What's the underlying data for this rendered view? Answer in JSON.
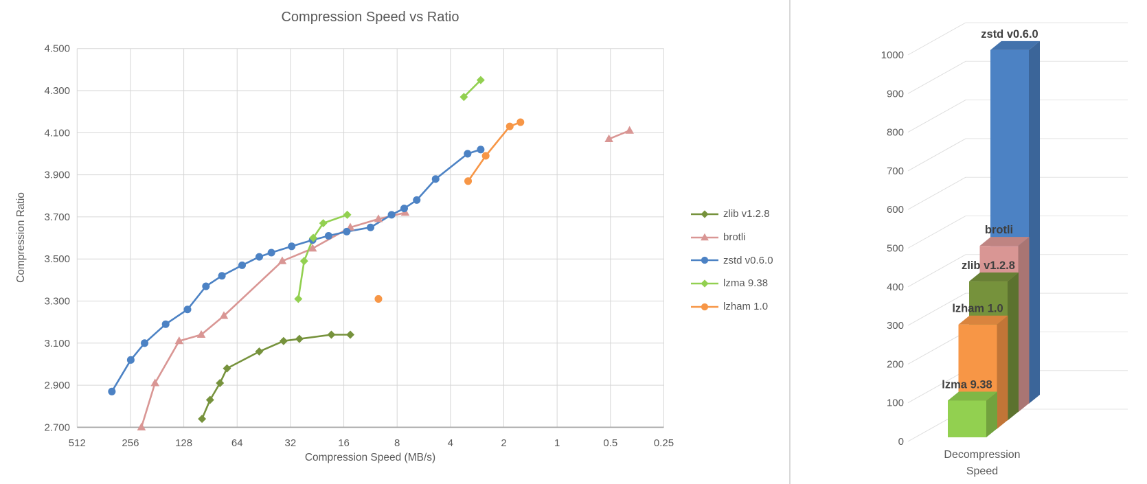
{
  "chart_data": [
    {
      "type": "scatter",
      "title": "Compression Speed vs Ratio",
      "xlabel": "Compression Speed (MB/s)",
      "ylabel": "Compression Ratio",
      "x_scale": "log2_descending",
      "x_ticks": [
        "512",
        "256",
        "128",
        "64",
        "32",
        "16",
        "8",
        "4",
        "2",
        "1",
        "0.5",
        "0.25"
      ],
      "y_ticks": [
        "4.500",
        "4.300",
        "4.100",
        "3.900",
        "3.700",
        "3.500",
        "3.300",
        "3.100",
        "2.900",
        "2.700"
      ],
      "xlim_descending": [
        512,
        0.25
      ],
      "ylim": [
        2.7,
        4.5
      ],
      "grid": true,
      "legend_position": "right",
      "series": [
        {
          "name": "zlib v1.2.8",
          "color": "#76923C",
          "marker": "diamond",
          "line_segments": [
            [
              0,
              8
            ]
          ],
          "points": [
            [
              101,
              2.74
            ],
            [
              91,
              2.83
            ],
            [
              80,
              2.91
            ],
            [
              73,
              2.98
            ],
            [
              48,
              3.06
            ],
            [
              35,
              3.11
            ],
            [
              28.5,
              3.12
            ],
            [
              18.8,
              3.14
            ],
            [
              14.7,
              3.14
            ]
          ]
        },
        {
          "name": "brotli",
          "color": "#D99694",
          "marker": "triangle",
          "line_segments": [
            [
              0,
              9
            ],
            [
              10,
              11
            ]
          ],
          "points": [
            [
              222,
              2.7
            ],
            [
              186,
              2.91
            ],
            [
              136,
              3.11
            ],
            [
              102,
              3.14
            ],
            [
              76,
              3.23
            ],
            [
              35.6,
              3.49
            ],
            [
              24,
              3.55
            ],
            [
              14.7,
              3.65
            ],
            [
              10.2,
              3.69
            ],
            [
              7.2,
              3.72
            ],
            [
              0.51,
              4.07
            ],
            [
              0.39,
              4.11
            ]
          ]
        },
        {
          "name": "zstd v0.6.0",
          "color": "#4C82C4",
          "marker": "circle",
          "line_segments": [
            [
              0,
              20
            ]
          ],
          "points": [
            [
              326,
              2.87
            ],
            [
              255,
              3.02
            ],
            [
              213,
              3.1
            ],
            [
              162,
              3.19
            ],
            [
              122,
              3.26
            ],
            [
              96,
              3.37
            ],
            [
              78,
              3.42
            ],
            [
              60,
              3.47
            ],
            [
              48,
              3.51
            ],
            [
              41,
              3.53
            ],
            [
              31.5,
              3.56
            ],
            [
              24,
              3.59
            ],
            [
              19.5,
              3.61
            ],
            [
              15.4,
              3.63
            ],
            [
              11.3,
              3.65
            ],
            [
              8.6,
              3.71
            ],
            [
              7.3,
              3.74
            ],
            [
              6.2,
              3.78
            ],
            [
              4.85,
              3.88
            ],
            [
              3.2,
              4.0
            ],
            [
              2.7,
              4.02
            ]
          ]
        },
        {
          "name": "lzma 9.38",
          "color": "#92D050",
          "marker": "diamond",
          "line_segments": [
            [
              0,
              4
            ],
            [
              5,
              6
            ]
          ],
          "points": [
            [
              28.9,
              3.31
            ],
            [
              26.8,
              3.49
            ],
            [
              23.8,
              3.6
            ],
            [
              20.9,
              3.67
            ],
            [
              15.3,
              3.71
            ],
            [
              3.36,
              4.27
            ],
            [
              2.7,
              4.35
            ]
          ]
        },
        {
          "name": "lzham 1.0",
          "color": "#F79646",
          "marker": "circle",
          "line_segments": [
            [
              1,
              4
            ]
          ],
          "points": [
            [
              10.2,
              3.31
            ],
            [
              3.18,
              3.87
            ],
            [
              2.53,
              3.99
            ],
            [
              1.85,
              4.13
            ],
            [
              1.61,
              4.15
            ]
          ]
        }
      ]
    },
    {
      "type": "bar",
      "subtype": "3d",
      "category_label_lines": [
        "Decompression",
        "Speed"
      ],
      "value_axis": {
        "min": 0,
        "max": 1000,
        "step": 100,
        "tick_labels": [
          "0",
          "100",
          "200",
          "300",
          "400",
          "500",
          "600",
          "700",
          "800",
          "900",
          "1000"
        ]
      },
      "bars_front_to_back": [
        {
          "name": "lzma 9.38",
          "value": 95,
          "color": "#92D050"
        },
        {
          "name": "lzham 1.0",
          "value": 270,
          "color": "#F79646"
        },
        {
          "name": "zlib v1.2.8",
          "value": 360,
          "color": "#76923C"
        },
        {
          "name": "brotli",
          "value": 430,
          "color": "#D99694"
        },
        {
          "name": "zstd v0.6.0",
          "value": 915,
          "color": "#4C82C4"
        }
      ]
    }
  ]
}
